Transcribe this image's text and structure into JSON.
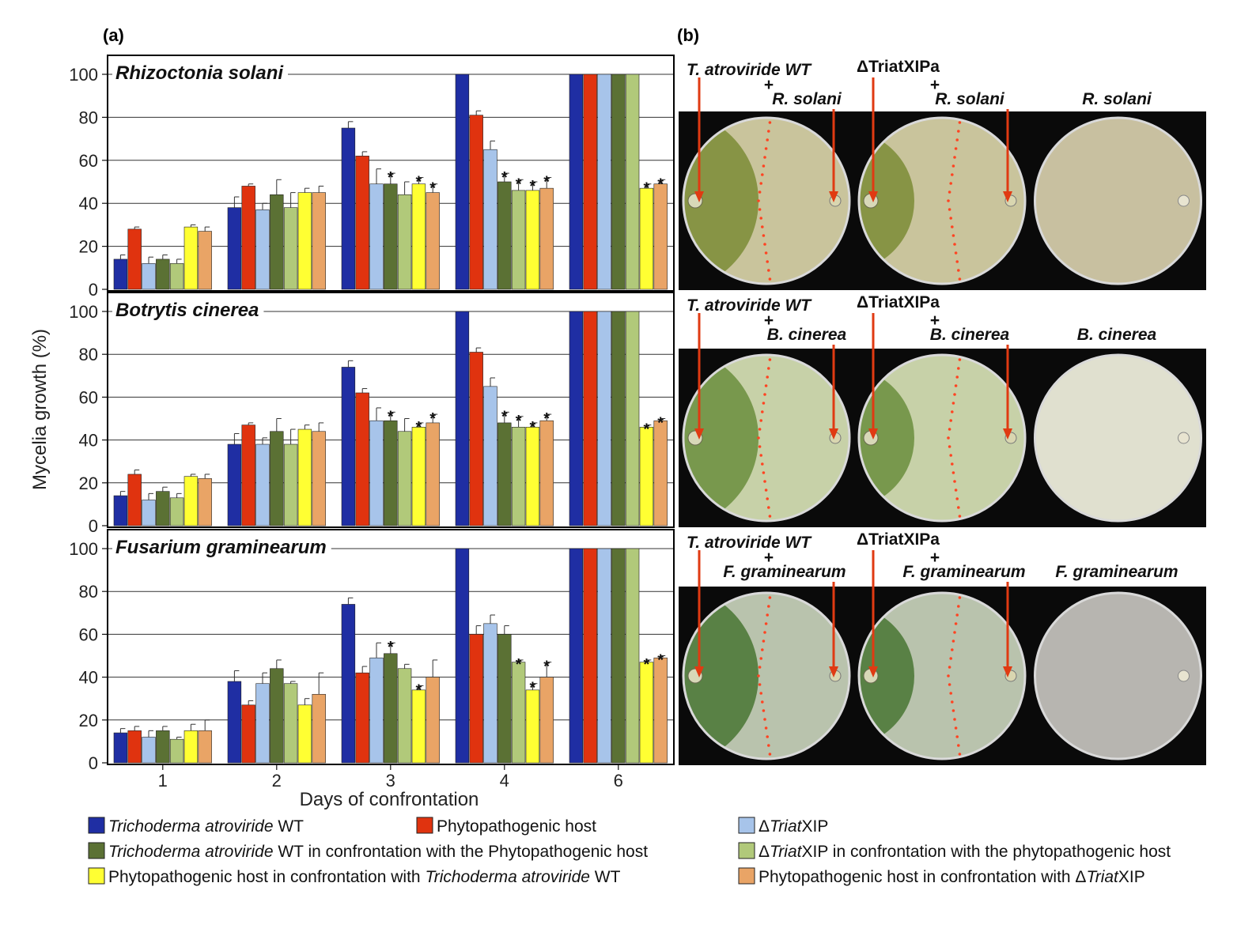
{
  "panels": {
    "a": "(a)",
    "b": "(b)"
  },
  "colors": {
    "wt": "#1f2ea3",
    "host": "#e0330f",
    "ko": "#a7c4ea",
    "wt_conf": "#5b7134",
    "ko_conf": "#b1c97a",
    "host_vs_wt": "#ffff33",
    "host_vs_ko": "#e9a466"
  },
  "chart_data": [
    {
      "type": "bar",
      "title": "Rhizoctonia solani",
      "categories": [
        "1",
        "2",
        "3",
        "4",
        "6"
      ],
      "xlabel": "Days of confrontation",
      "ylabel": "Mycelia growth (%)",
      "ylim": [
        0,
        100
      ],
      "yticks": [
        "0",
        "20",
        "40",
        "60",
        "80",
        "100"
      ],
      "series": [
        {
          "name": "Trichoderma atroviride WT",
          "values": [
            14,
            38,
            75,
            100,
            100
          ],
          "errors": [
            2,
            5,
            3,
            0,
            0
          ]
        },
        {
          "name": "Phytopathogenic host",
          "values": [
            28,
            48,
            62,
            81,
            100
          ],
          "errors": [
            1,
            1,
            2,
            2,
            0
          ]
        },
        {
          "name": "ΔTriatXIP",
          "values": [
            12,
            37,
            49,
            65,
            100
          ],
          "errors": [
            3,
            3,
            7,
            4,
            0
          ]
        },
        {
          "name": "Trichoderma atroviride WT in confrontation with the Phytopathogenic host",
          "values": [
            14,
            44,
            49,
            50,
            100
          ],
          "errors": [
            2,
            7,
            5,
            4,
            0
          ]
        },
        {
          "name": "ΔTriatXIP in confrontation with the phytopathogenic host",
          "values": [
            12,
            38,
            44,
            46,
            100
          ],
          "errors": [
            2,
            7,
            6,
            5,
            0
          ]
        },
        {
          "name": "Phytopathogenic host in confrontation with Trichoderma atroviride WT",
          "values": [
            29,
            45,
            49,
            46,
            47
          ],
          "errors": [
            1,
            2,
            3,
            4,
            2
          ]
        },
        {
          "name": "Phytopathogenic host in confrontation with ΔTriatXIP",
          "values": [
            27,
            45,
            45,
            47,
            49
          ],
          "errors": [
            2,
            3,
            4,
            5,
            2
          ]
        }
      ],
      "stars": [
        {
          "category": "3",
          "series": [
            3,
            5,
            6
          ]
        },
        {
          "category": "4",
          "series": [
            3,
            4,
            5,
            6
          ]
        },
        {
          "category": "6",
          "series": [
            5,
            6
          ]
        }
      ]
    },
    {
      "type": "bar",
      "title": "Botrytis cinerea",
      "categories": [
        "1",
        "2",
        "3",
        "4",
        "6"
      ],
      "xlabel": "Days of confrontation",
      "ylabel": "Mycelia growth (%)",
      "ylim": [
        0,
        100
      ],
      "yticks": [
        "0",
        "20",
        "40",
        "60",
        "80",
        "100"
      ],
      "series": [
        {
          "name": "Trichoderma atroviride WT",
          "values": [
            14,
            38,
            74,
            100,
            100
          ],
          "errors": [
            2,
            5,
            3,
            0,
            0
          ]
        },
        {
          "name": "Phytopathogenic host",
          "values": [
            24,
            47,
            62,
            81,
            100
          ],
          "errors": [
            2,
            1,
            2,
            2,
            0
          ]
        },
        {
          "name": "ΔTriatXIP",
          "values": [
            12,
            38,
            49,
            65,
            100
          ],
          "errors": [
            3,
            3,
            6,
            4,
            0
          ]
        },
        {
          "name": "Trichoderma atroviride WT in confrontation with the Phytopathogenic host",
          "values": [
            16,
            44,
            49,
            48,
            100
          ],
          "errors": [
            2,
            6,
            4,
            5,
            0
          ]
        },
        {
          "name": "ΔTriatXIP in confrontation with the phytopathogenic host",
          "values": [
            13,
            38,
            44,
            46,
            100
          ],
          "errors": [
            2,
            7,
            6,
            5,
            0
          ]
        },
        {
          "name": "Phytopathogenic host in confrontation with Trichoderma atroviride WT",
          "values": [
            23,
            45,
            46,
            46,
            46
          ],
          "errors": [
            1,
            2,
            2,
            2,
            1
          ]
        },
        {
          "name": "Phytopathogenic host in confrontation with ΔTriatXIP",
          "values": [
            22,
            44,
            48,
            49,
            49
          ],
          "errors": [
            2,
            4,
            4,
            3,
            1
          ]
        }
      ],
      "stars": [
        {
          "category": "3",
          "series": [
            3,
            5,
            6
          ]
        },
        {
          "category": "4",
          "series": [
            3,
            4,
            5,
            6
          ]
        },
        {
          "category": "6",
          "series": [
            5,
            6
          ]
        }
      ]
    },
    {
      "type": "bar",
      "title": "Fusarium graminearum",
      "categories": [
        "1",
        "2",
        "3",
        "4",
        "6"
      ],
      "xlabel": "Days of confrontation",
      "ylabel": "Mycelia growth (%)",
      "ylim": [
        0,
        100
      ],
      "yticks": [
        "0",
        "20",
        "40",
        "60",
        "80",
        "100"
      ],
      "series": [
        {
          "name": "Trichoderma atroviride WT",
          "values": [
            14,
            38,
            74,
            100,
            100
          ],
          "errors": [
            2,
            5,
            3,
            0,
            0
          ]
        },
        {
          "name": "Phytopathogenic host",
          "values": [
            15,
            27,
            42,
            60,
            100
          ],
          "errors": [
            2,
            2,
            3,
            4,
            0
          ]
        },
        {
          "name": "ΔTriatXIP",
          "values": [
            12,
            37,
            49,
            65,
            100
          ],
          "errors": [
            3,
            5,
            7,
            4,
            0
          ]
        },
        {
          "name": "Trichoderma atroviride WT in confrontation with the Phytopathogenic host",
          "values": [
            15,
            44,
            51,
            60,
            100
          ],
          "errors": [
            2,
            4,
            5,
            4,
            0
          ]
        },
        {
          "name": "ΔTriatXIP in confrontation with the phytopathogenic host",
          "values": [
            11,
            37,
            44,
            47,
            100
          ],
          "errors": [
            1,
            1,
            2,
            1,
            0
          ]
        },
        {
          "name": "Phytopathogenic host in confrontation with Trichoderma atroviride WT",
          "values": [
            15,
            27,
            34,
            34,
            47
          ],
          "errors": [
            3,
            3,
            2,
            3,
            1
          ]
        },
        {
          "name": "Phytopathogenic host in confrontation with ΔTriatXIP",
          "values": [
            15,
            32,
            40,
            40,
            49
          ],
          "errors": [
            5,
            10,
            8,
            7,
            1
          ]
        }
      ],
      "stars": [
        {
          "category": "3",
          "series": [
            3,
            5
          ]
        },
        {
          "category": "4",
          "series": [
            4,
            5,
            6
          ]
        },
        {
          "category": "6",
          "series": [
            5,
            6
          ]
        }
      ]
    }
  ],
  "star_symbol": "*",
  "plates": [
    {
      "id": "rs",
      "col1_top": "T. atroviride WT",
      "col1_plus": "+",
      "col1_host": "R. solani",
      "col2_top": "ΔTriatXIPa",
      "col2_plus": "+",
      "col2_host": "R. solani",
      "col3": "R. solani",
      "colony": "#7f8f3c",
      "host_color": "#c9c49c",
      "col3_color": "#c8c0a0"
    },
    {
      "id": "bc",
      "col1_top": "T. atroviride WT",
      "col1_plus": "+",
      "col1_host": "B. cinerea",
      "col2_top": "ΔTriatXIPa",
      "col2_plus": "+",
      "col2_host": "B. cinerea",
      "col3": "B. cinerea",
      "colony": "#6f9143",
      "host_color": "#c7d1a8",
      "col3_color": "#e0e0cf"
    },
    {
      "id": "fg",
      "col1_top": "T. atroviride WT",
      "col1_plus": "+",
      "col1_host": "F. graminearum",
      "col2_top": "ΔTriatXIPa",
      "col2_plus": "+",
      "col2_host": "F. graminearum",
      "col3": "F. graminearum",
      "colony": "#4f7a3a",
      "host_color": "#b9c3ad",
      "col3_color": "#b7b5b0"
    }
  ],
  "legend": [
    {
      "key": "wt",
      "parts": [
        {
          "t": "Trichoderma atroviride",
          "i": true
        },
        {
          "t": " WT",
          "i": false
        }
      ]
    },
    {
      "key": "host",
      "parts": [
        {
          "t": "Phytopathogenic host",
          "i": false
        }
      ]
    },
    {
      "key": "ko",
      "parts": [
        {
          "t": "Δ",
          "i": false
        },
        {
          "t": "Triat",
          "i": true
        },
        {
          "t": "XIP",
          "i": false
        }
      ]
    },
    {
      "key": "wt_conf",
      "parts": [
        {
          "t": "Trichoderma atroviride",
          "i": true
        },
        {
          "t": " WT in confrontation with the Phytopathogenic host",
          "i": false
        }
      ]
    },
    {
      "key": "ko_conf",
      "parts": [
        {
          "t": "Δ",
          "i": false
        },
        {
          "t": "Triat",
          "i": true
        },
        {
          "t": "XIP in confrontation with the phytopathogenic host",
          "i": false
        }
      ]
    },
    {
      "key": "host_vs_wt",
      "parts": [
        {
          "t": "Phytopathogenic host in confrontation with ",
          "i": false
        },
        {
          "t": "Trichoderma atroviride",
          "i": true
        },
        {
          "t": " WT",
          "i": false
        }
      ]
    },
    {
      "key": "host_vs_ko",
      "parts": [
        {
          "t": "Phytopathogenic host in confrontation with Δ",
          "i": false
        },
        {
          "t": "Triat",
          "i": true
        },
        {
          "t": "XIP",
          "i": false
        }
      ]
    }
  ]
}
